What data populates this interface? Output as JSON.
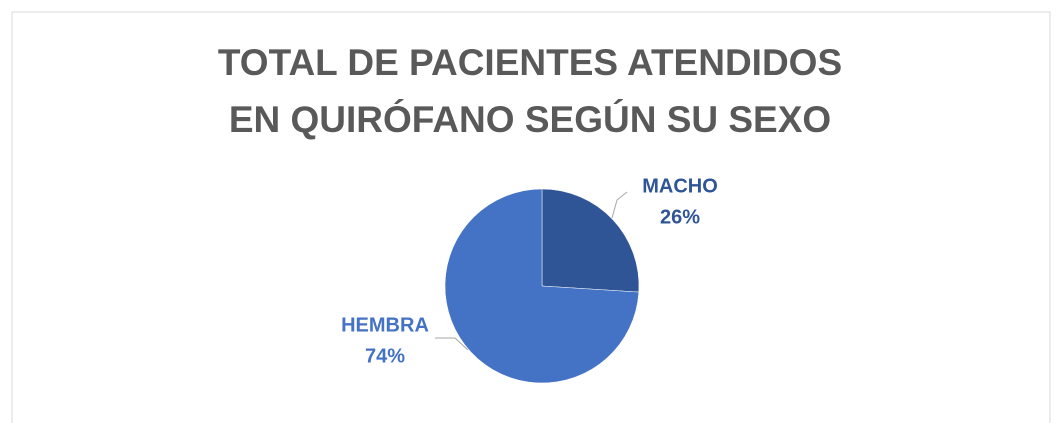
{
  "chart_data": {
    "type": "pie",
    "title": "TOTAL DE PACIENTES ATENDIDOS EN QUIRÓFANO SEGÚN SU SEXO",
    "categories": [
      "MACHO",
      "HEMBRA"
    ],
    "values": [
      26,
      74
    ],
    "value_labels": [
      "26%",
      "74%"
    ],
    "colors": [
      "#2f5597",
      "#4472c4"
    ]
  }
}
